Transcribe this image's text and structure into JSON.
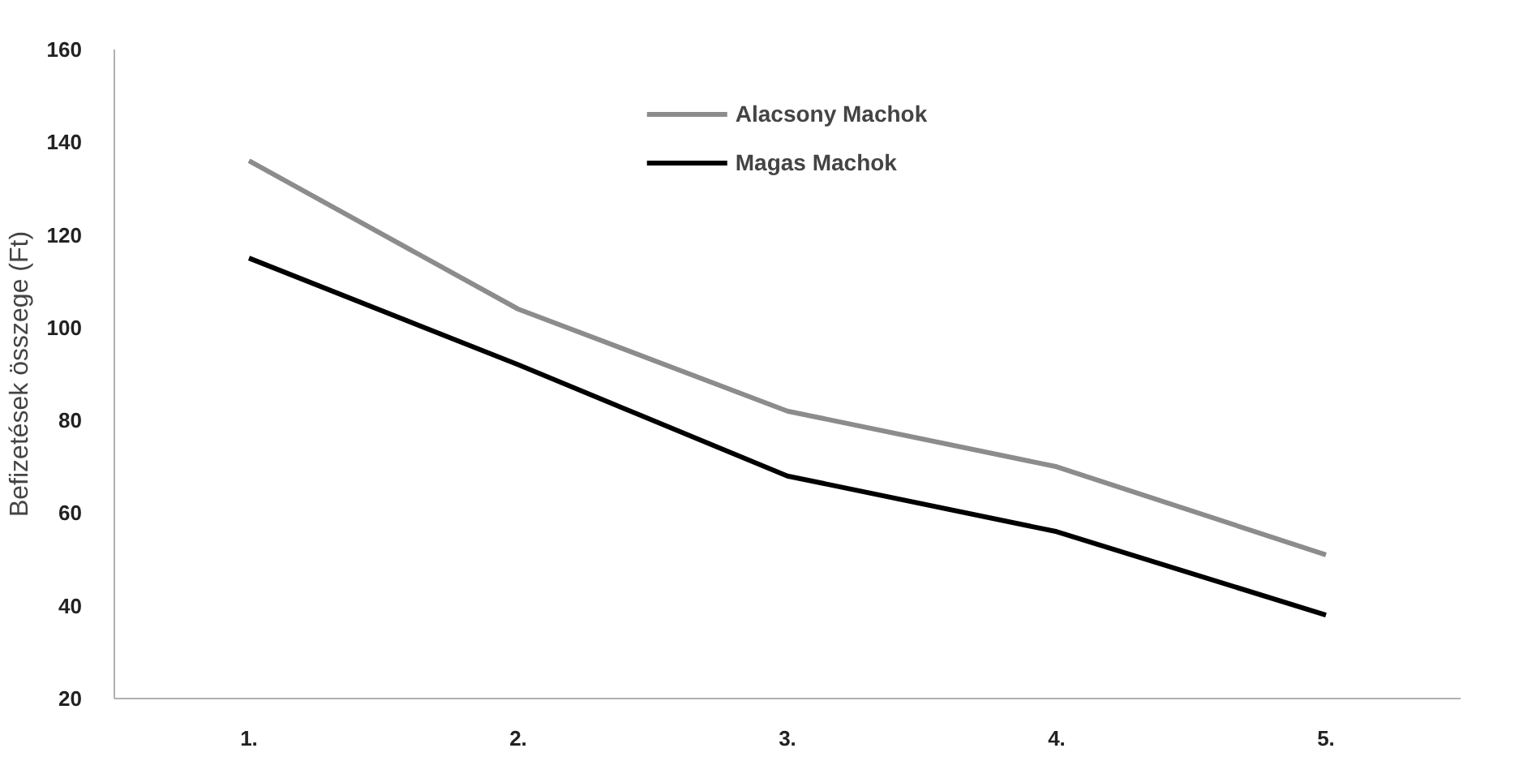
{
  "chart_data": {
    "type": "line",
    "ylabel": "Befizetések összege (Ft)",
    "categories": [
      "1.",
      "2.",
      "3.",
      "4.",
      "5."
    ],
    "series": [
      {
        "name": "Alacsony Machok",
        "color": "#8c8c8c",
        "values": [
          136,
          104,
          82,
          70,
          51
        ]
      },
      {
        "name": "Magas Machok",
        "color": "#000000",
        "values": [
          115,
          92,
          68,
          56,
          38
        ]
      }
    ],
    "ylim": [
      20,
      160
    ],
    "yticks": [
      20,
      40,
      60,
      80,
      100,
      120,
      140,
      160
    ],
    "grid": false,
    "legend": "top",
    "marker": "none",
    "line_style": "solid"
  }
}
